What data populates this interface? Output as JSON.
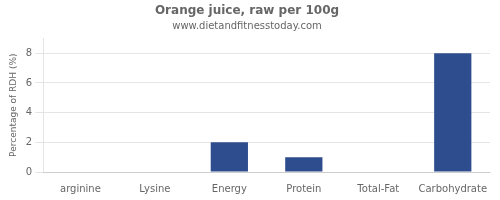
{
  "chart_data": {
    "type": "bar",
    "title": "Orange juice, raw per 100g",
    "subtitle": "www.dietandfitnesstoday.com",
    "categories": [
      "arginine",
      "Lysine",
      "Energy",
      "Protein",
      "Total-Fat",
      "Carbohydrate"
    ],
    "values": [
      0.0,
      0.0,
      2.0,
      1.0,
      0.0,
      8.0
    ],
    "color": "#2e4d8e",
    "ylabel": "Percentage of RDH (%)",
    "ylim": [
      0,
      9
    ],
    "yticks": [
      0,
      2,
      4,
      6,
      8
    ],
    "grid": true
  }
}
